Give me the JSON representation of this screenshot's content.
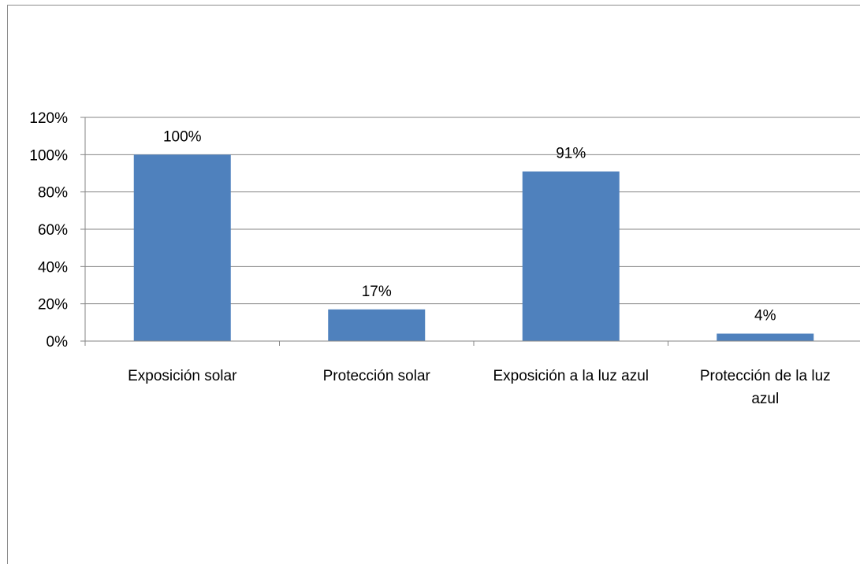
{
  "chart_data": {
    "type": "bar",
    "title": "",
    "xlabel": "",
    "ylabel": "",
    "categories": [
      [
        "Exposición solar"
      ],
      [
        "Protección solar"
      ],
      [
        "Exposición a la luz azul"
      ],
      [
        "Protección de la luz",
        "azul"
      ]
    ],
    "values": [
      100,
      17,
      91,
      4
    ],
    "value_labels": [
      "100%",
      "17%",
      "91%",
      "4%"
    ],
    "y_ticks": [
      "0%",
      "20%",
      "40%",
      "60%",
      "80%",
      "100%",
      "120%"
    ],
    "ylim": [
      0,
      120
    ],
    "y_step": 20,
    "grid": true,
    "legend": "none",
    "colors": {
      "bar": "#4f81bd",
      "grid": "#868686",
      "axis": "#868686"
    }
  }
}
